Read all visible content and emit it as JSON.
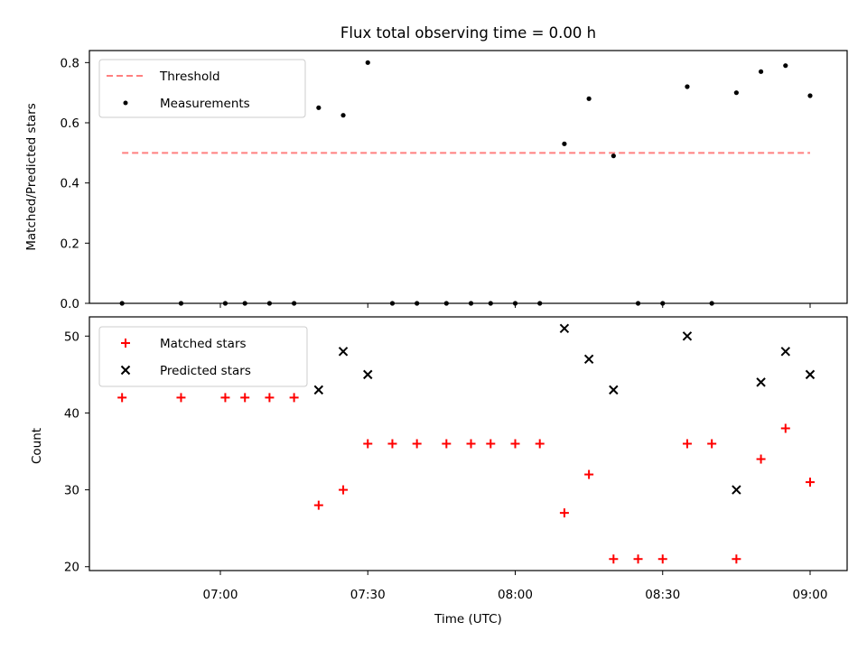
{
  "chart_data": [
    {
      "type": "scatter",
      "title": "Flux total observing time = 0.00 h",
      "ylabel": "Matched/Predicted stars",
      "xlabel": "",
      "ylim": [
        0,
        0.84
      ],
      "yticks": [
        "0.0",
        "0.2",
        "0.4",
        "0.6",
        "0.8"
      ],
      "xticks": [
        "07:00",
        "07:30",
        "08:00",
        "08:30",
        "09:00"
      ],
      "legend": [
        "Threshold",
        "Measurements"
      ],
      "legend_position": "upper-left",
      "colors": {
        "threshold": "#ff7f7f",
        "measurements": "#000000"
      },
      "threshold": {
        "name": "Threshold",
        "y": 0.5,
        "x_range": [
          "06:40",
          "09:00"
        ]
      },
      "series": [
        {
          "name": "Measurements",
          "x": [
            "06:40",
            "06:52",
            "07:01",
            "07:05",
            "07:10",
            "07:15",
            "07:20",
            "07:25",
            "07:30",
            "07:35",
            "07:40",
            "07:46",
            "07:51",
            "07:55",
            "08:00",
            "08:05",
            "08:10",
            "08:15",
            "08:20",
            "08:25",
            "08:30",
            "08:35",
            "08:40",
            "08:45",
            "08:50",
            "08:55",
            "09:00"
          ],
          "y": [
            0.0,
            0.0,
            0.0,
            0.0,
            0.0,
            0.0,
            0.65,
            0.625,
            0.8,
            0.0,
            0.0,
            0.0,
            0.0,
            0.0,
            0.0,
            0.0,
            0.53,
            0.68,
            0.49,
            0.0,
            0.0,
            0.72,
            0.0,
            0.7,
            0.77,
            0.79,
            0.69
          ]
        }
      ]
    },
    {
      "type": "scatter",
      "title": "",
      "ylabel": "Count",
      "xlabel": "Time (UTC)",
      "ylim": [
        19.5,
        52.5
      ],
      "yticks": [
        "20",
        "30",
        "40",
        "50"
      ],
      "xticks": [
        "07:00",
        "07:30",
        "08:00",
        "08:30",
        "09:00"
      ],
      "legend": [
        "Matched stars",
        "Predicted stars"
      ],
      "legend_position": "upper-left",
      "colors": {
        "matched": "#ff0000",
        "predicted": "#000000"
      },
      "series": [
        {
          "name": "Matched stars",
          "x": [
            "06:40",
            "06:52",
            "07:01",
            "07:05",
            "07:10",
            "07:15",
            "07:20",
            "07:25",
            "07:30",
            "07:35",
            "07:40",
            "07:46",
            "07:51",
            "07:55",
            "08:00",
            "08:05",
            "08:10",
            "08:15",
            "08:20",
            "08:25",
            "08:30",
            "08:35",
            "08:40",
            "08:45",
            "08:50",
            "08:55",
            "09:00"
          ],
          "y": [
            42,
            42,
            42,
            42,
            42,
            42,
            28,
            30,
            36,
            36,
            36,
            36,
            36,
            36,
            36,
            36,
            27,
            32,
            21,
            21,
            21,
            36,
            36,
            21,
            34,
            38,
            31
          ]
        },
        {
          "name": "Predicted stars",
          "x": [
            "07:20",
            "07:25",
            "07:30",
            "08:10",
            "08:15",
            "08:20",
            "08:35",
            "08:45",
            "08:50",
            "08:55",
            "09:00"
          ],
          "y": [
            43,
            48,
            45,
            51,
            47,
            43,
            50,
            30,
            44,
            48,
            45
          ]
        }
      ]
    }
  ]
}
